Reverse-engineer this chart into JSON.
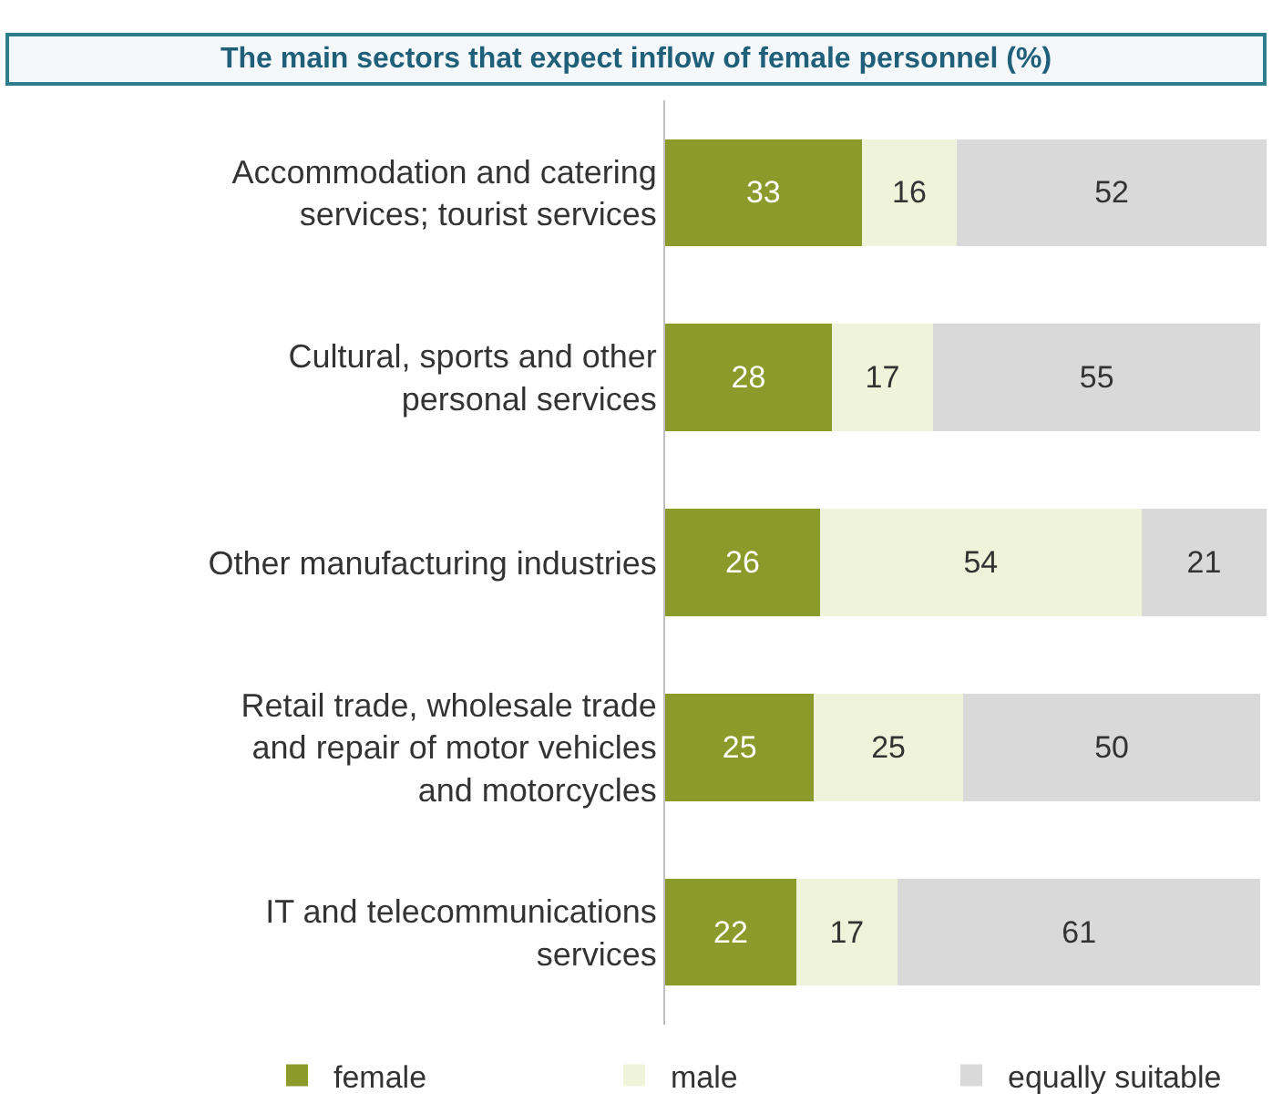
{
  "chart_data": {
    "type": "bar",
    "orientation": "horizontal",
    "stacked": true,
    "title": "The main sectors that expect inflow of female personnel (%)",
    "categories": [
      "Accommodation and catering services; tourist services",
      "Cultural, sports and other personal services",
      "Other manufacturing industries",
      "Retail trade, wholesale trade and repair of motor vehicles and motorcycles",
      "IT and telecommunications services"
    ],
    "series": [
      {
        "name": "female",
        "color": "#8a9b2b",
        "values": [
          33,
          28,
          26,
          25,
          22
        ]
      },
      {
        "name": "male",
        "color": "#eff3da",
        "values": [
          16,
          17,
          54,
          25,
          17
        ]
      },
      {
        "name": "equally suitable",
        "color": "#d9d9d9",
        "values": [
          52,
          55,
          21,
          50,
          61
        ]
      }
    ],
    "data_labels": true,
    "legend": "bottom"
  }
}
